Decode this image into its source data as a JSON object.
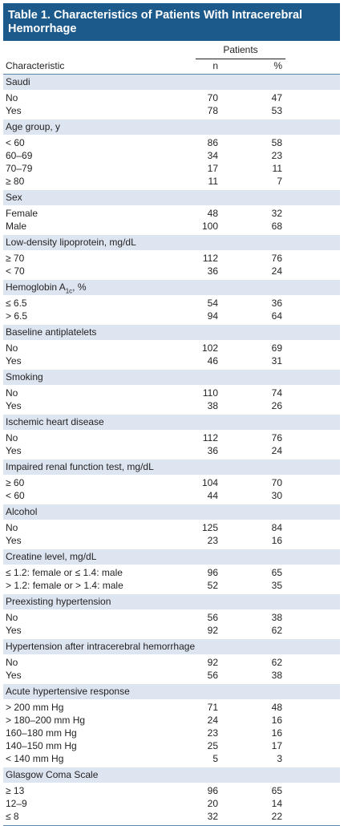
{
  "title": "Table 1. Characteristics of Patients With Intracerebral Hemorrhage",
  "header": {
    "patients": "Patients",
    "characteristic": "Characteristic",
    "n": "n",
    "pct": "%"
  },
  "groups": [
    {
      "label": "Saudi",
      "rows": [
        [
          "No",
          "70",
          "47"
        ],
        [
          "Yes",
          "78",
          "53"
        ]
      ]
    },
    {
      "label": "Age group, y",
      "rows": [
        [
          "< 60",
          "86",
          "58"
        ],
        [
          "60–69",
          "34",
          "23"
        ],
        [
          "70–79",
          "17",
          "11"
        ],
        [
          "≥ 80",
          "11",
          "7"
        ]
      ]
    },
    {
      "label": "Sex",
      "rows": [
        [
          "Female",
          "48",
          "32"
        ],
        [
          "Male",
          "100",
          "68"
        ]
      ]
    },
    {
      "label": "Low-density lipoprotein, mg/dL",
      "rows": [
        [
          "≥ 70",
          "112",
          "76"
        ],
        [
          "< 70",
          "36",
          "24"
        ]
      ]
    },
    {
      "label": "Hemoglobin A1c, %",
      "rows": [
        [
          "≤ 6.5",
          "54",
          "36"
        ],
        [
          "> 6.5",
          "94",
          "64"
        ]
      ]
    },
    {
      "label": "Baseline antiplatelets",
      "rows": [
        [
          "No",
          "102",
          "69"
        ],
        [
          "Yes",
          "46",
          "31"
        ]
      ]
    },
    {
      "label": "Smoking",
      "rows": [
        [
          "No",
          "110",
          "74"
        ],
        [
          "Yes",
          "38",
          "26"
        ]
      ]
    },
    {
      "label": "Ischemic heart disease",
      "rows": [
        [
          "No",
          "112",
          "76"
        ],
        [
          "Yes",
          "36",
          "24"
        ]
      ]
    },
    {
      "label": "Impaired renal function test, mg/dL",
      "rows": [
        [
          "≥ 60",
          "104",
          "70"
        ],
        [
          "< 60",
          "44",
          "30"
        ]
      ]
    },
    {
      "label": "Alcohol",
      "rows": [
        [
          "No",
          "125",
          "84"
        ],
        [
          "Yes",
          "23",
          "16"
        ]
      ]
    },
    {
      "label": "Creatine level, mg/dL",
      "rows": [
        [
          "≤ 1.2: female or ≤ 1.4: male",
          "96",
          "65"
        ],
        [
          "> 1.2: female or > 1.4: male",
          "52",
          "35"
        ]
      ]
    },
    {
      "label": "Preexisting hypertension",
      "rows": [
        [
          "No",
          "56",
          "38"
        ],
        [
          "Yes",
          "92",
          "62"
        ]
      ]
    },
    {
      "label": "Hypertension after intracerebral hemorrhage",
      "rows": [
        [
          "No",
          "92",
          "62"
        ],
        [
          "Yes",
          "56",
          "38"
        ]
      ]
    },
    {
      "label": "Acute hypertensive response",
      "rows": [
        [
          "> 200 mm Hg",
          "71",
          "48"
        ],
        [
          "> 180–200 mm Hg",
          "24",
          "16"
        ],
        [
          "160–180 mm Hg",
          "23",
          "16"
        ],
        [
          "140–150 mm Hg",
          "25",
          "17"
        ],
        [
          "< 140 mm Hg",
          "5",
          "3"
        ]
      ]
    },
    {
      "label": "Glasgow Coma Scale",
      "rows": [
        [
          "≥ 13",
          "96",
          "65"
        ],
        [
          "12–9",
          "20",
          "14"
        ],
        [
          "≤ 8",
          "32",
          "22"
        ]
      ]
    }
  ]
}
